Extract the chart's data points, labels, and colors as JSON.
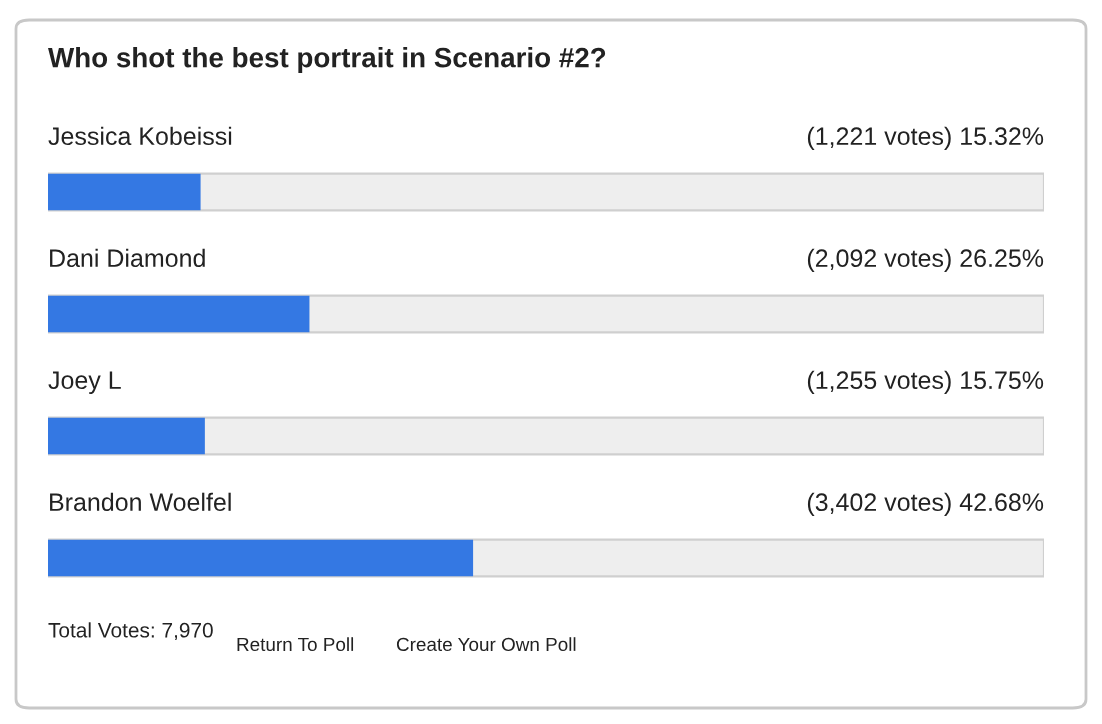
{
  "chart_data": {
    "type": "bar",
    "orientation": "horizontal",
    "title": "Who shot the best portrait in Scenario #2?",
    "categories": [
      "Jessica Kobeissi",
      "Dani Diamond",
      "Joey L",
      "Brandon Woelfel"
    ],
    "values": [
      15.32,
      26.25,
      15.75,
      42.68
    ],
    "value_labels": [
      "(1,221 votes) 15.32%",
      "(2,092 votes) 26.25%",
      "(1,255 votes) 15.75%",
      "(3,402 votes) 42.68%"
    ],
    "color": "#3478e3",
    "xlim": [
      0,
      100
    ],
    "annotations": [
      "Total Votes: 7,970",
      "Return To Poll",
      "Create Your Own Poll"
    ]
  }
}
